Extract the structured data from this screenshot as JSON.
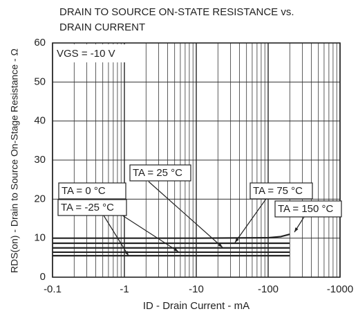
{
  "chart_data": {
    "type": "line",
    "title": [
      "DRAIN TO SOURCE ON-STATE RESISTANCE vs.",
      "DRAIN CURRENT"
    ],
    "x_label": "ID - Drain Current - mA",
    "y_label": "RDS(on) - Drain to Source On-Stage Resistance - Ω",
    "annotation": "VGS = -10 V",
    "x_scale": "log",
    "xlim": [
      -0.1,
      -1000
    ],
    "xticks": [
      -0.1,
      -1,
      -10,
      -100,
      -1000
    ],
    "ylim": [
      0,
      60
    ],
    "yticks": [
      0,
      10,
      20,
      30,
      40,
      50,
      60
    ],
    "grid": true,
    "series": [
      {
        "name": "TA = 150 °C",
        "color": "#222222",
        "x": [
          -0.1,
          -1,
          -10,
          -100,
          -150,
          -200
        ],
        "values": [
          10,
          10,
          10,
          10.1,
          10.4,
          11
        ]
      },
      {
        "name": "TA = 75 °C",
        "color": "#222222",
        "x": [
          -0.1,
          -1,
          -10,
          -100,
          -200
        ],
        "values": [
          8.7,
          8.7,
          8.7,
          8.7,
          8.7
        ]
      },
      {
        "name": "TA = 25 °C",
        "color": "#222222",
        "x": [
          -0.1,
          -1,
          -10,
          -100,
          -200
        ],
        "values": [
          7.5,
          7.5,
          7.5,
          7.5,
          7.5
        ]
      },
      {
        "name": "TA = 0 °C",
        "color": "#222222",
        "x": [
          -0.1,
          -1,
          -10,
          -100,
          -200
        ],
        "values": [
          6.4,
          6.4,
          6.4,
          6.4,
          6.4
        ]
      },
      {
        "name": "TA = -25 °C",
        "color": "#222222",
        "x": [
          -0.1,
          -1,
          -10,
          -100,
          -200
        ],
        "values": [
          5.5,
          5.5,
          5.5,
          5.5,
          5.5
        ]
      }
    ]
  }
}
